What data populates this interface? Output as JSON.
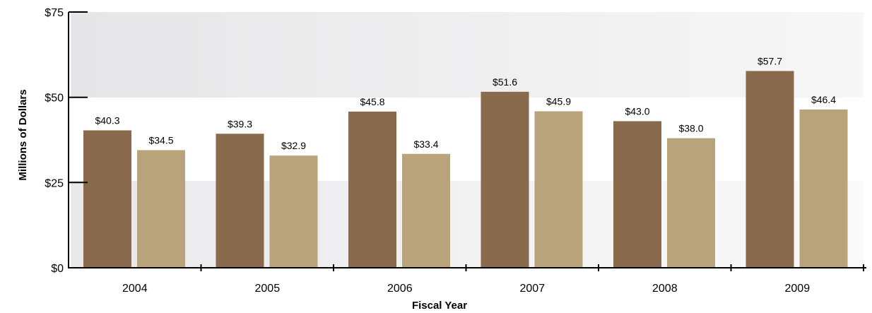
{
  "chart_data": {
    "type": "bar",
    "categories": [
      "2004",
      "2005",
      "2006",
      "2007",
      "2008",
      "2009"
    ],
    "series": [
      {
        "values": [
          40.3,
          39.3,
          45.8,
          51.6,
          43.0,
          57.7
        ],
        "labels": [
          "$40.3",
          "$39.3",
          "$45.8",
          "$51.6",
          "$43.0",
          "$57.7"
        ],
        "color": "#8a6a4c"
      },
      {
        "values": [
          34.5,
          32.9,
          33.4,
          45.9,
          38.0,
          46.4
        ],
        "labels": [
          "$34.5",
          "$32.9",
          "$33.4",
          "$45.9",
          "$38.0",
          "$46.4"
        ],
        "color": "#b9a37a"
      }
    ],
    "xlabel": "Fiscal Year",
    "ylabel": "Millions of Dollars",
    "ylim": [
      0,
      75
    ],
    "yticks": [
      0,
      25,
      50,
      75
    ],
    "ytick_labels": [
      "$0",
      "$25",
      "$50",
      "$75"
    ],
    "grid": false,
    "legend": "none"
  }
}
